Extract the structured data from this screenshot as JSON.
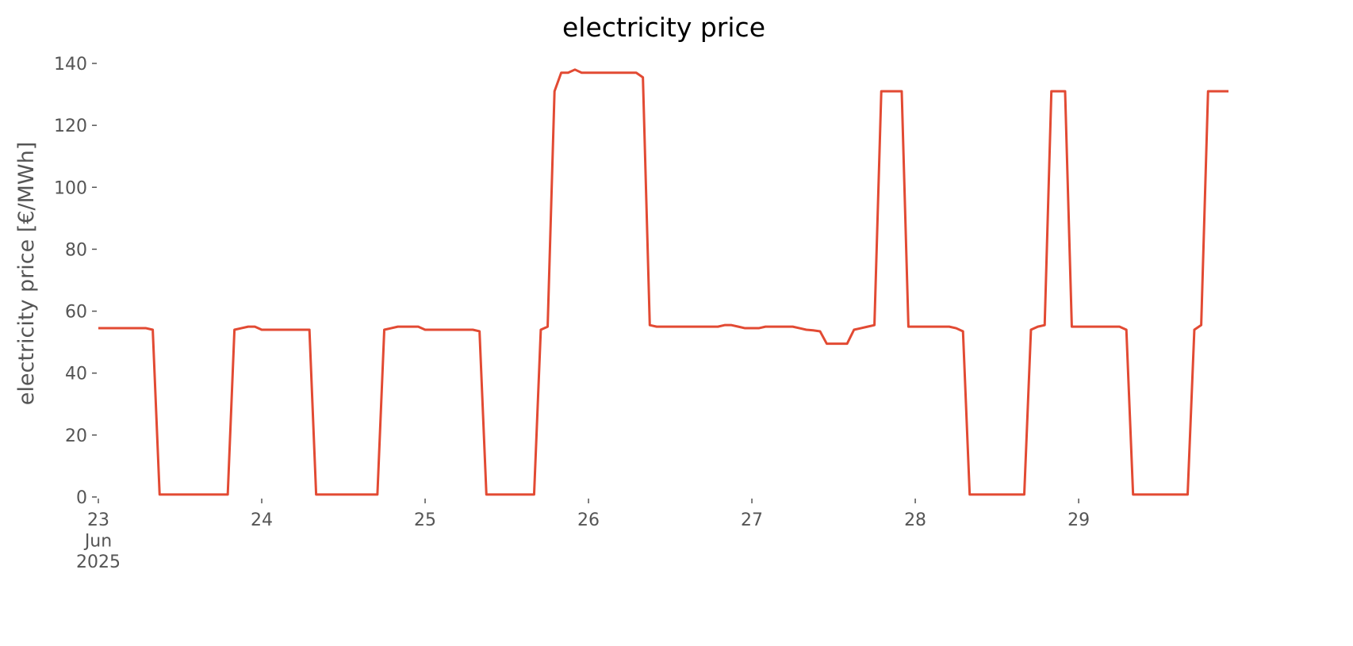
{
  "chart_data": {
    "type": "line",
    "title": "electricity price",
    "y_label": "electricity price [€/MWh]",
    "x": [
      23,
      23.042,
      23.083,
      23.125,
      23.167,
      23.208,
      23.25,
      23.292,
      23.333,
      23.375,
      23.417,
      23.458,
      23.5,
      23.542,
      23.583,
      23.625,
      23.667,
      23.708,
      23.75,
      23.792,
      23.833,
      23.875,
      23.917,
      23.958,
      24,
      24.042,
      24.083,
      24.125,
      24.167,
      24.208,
      24.25,
      24.292,
      24.333,
      24.375,
      24.417,
      24.458,
      24.5,
      24.542,
      24.583,
      24.625,
      24.667,
      24.708,
      24.75,
      24.792,
      24.833,
      24.875,
      24.917,
      24.958,
      25,
      25.042,
      25.083,
      25.125,
      25.167,
      25.208,
      25.25,
      25.292,
      25.333,
      25.375,
      25.417,
      25.458,
      25.5,
      25.542,
      25.583,
      25.625,
      25.667,
      25.708,
      25.75,
      25.792,
      25.833,
      25.875,
      25.917,
      25.958,
      26,
      26.042,
      26.083,
      26.125,
      26.167,
      26.208,
      26.25,
      26.292,
      26.333,
      26.375,
      26.417,
      26.458,
      26.5,
      26.542,
      26.583,
      26.625,
      26.667,
      26.708,
      26.75,
      26.792,
      26.833,
      26.875,
      26.917,
      26.958,
      27,
      27.042,
      27.083,
      27.125,
      27.167,
      27.208,
      27.25,
      27.292,
      27.333,
      27.375,
      27.417,
      27.458,
      27.5,
      27.542,
      27.583,
      27.625,
      27.667,
      27.708,
      27.75,
      27.792,
      27.833,
      27.875,
      27.917,
      27.958,
      28,
      28.042,
      28.083,
      28.125,
      28.167,
      28.208,
      28.25,
      28.292,
      28.333,
      28.375,
      28.417,
      28.458,
      28.5,
      28.542,
      28.583,
      28.625,
      28.667,
      28.708,
      28.75,
      28.792,
      28.833,
      28.875,
      28.917,
      28.958,
      29,
      29.042,
      29.083,
      29.125,
      29.167,
      29.208,
      29.25,
      29.292,
      29.333,
      29.375,
      29.417,
      29.458,
      29.5,
      29.542,
      29.583,
      29.625,
      29.667,
      29.708,
      29.75,
      29.792,
      29.833,
      29.875,
      29.917
    ],
    "series": [
      {
        "name": "electricity price",
        "color": "#e24a33",
        "values": [
          54.5,
          54.5,
          54.5,
          54.5,
          54.5,
          54.5,
          54.5,
          54.5,
          54,
          0.8,
          0.8,
          0.8,
          0.8,
          0.8,
          0.8,
          0.8,
          0.8,
          0.8,
          0.8,
          0.8,
          54,
          54.5,
          55,
          55,
          54,
          54,
          54,
          54,
          54,
          54,
          54,
          54,
          0.8,
          0.8,
          0.8,
          0.8,
          0.8,
          0.8,
          0.8,
          0.8,
          0.8,
          0.8,
          54,
          54.5,
          55,
          55,
          55,
          55,
          54,
          54,
          54,
          54,
          54,
          54,
          54,
          54,
          53.5,
          0.8,
          0.8,
          0.8,
          0.8,
          0.8,
          0.8,
          0.8,
          0.8,
          54,
          55,
          131,
          137,
          137,
          138,
          137,
          137,
          137,
          137,
          137,
          137,
          137,
          137,
          137,
          135.5,
          55.5,
          55,
          55,
          55,
          55,
          55,
          55,
          55,
          55,
          55,
          55,
          55.5,
          55.5,
          55,
          54.5,
          54.5,
          54.5,
          55,
          55,
          55,
          55,
          55,
          54.5,
          54,
          53.8,
          53.5,
          49.5,
          49.5,
          49.5,
          49.5,
          54,
          54.5,
          55,
          55.5,
          131,
          131,
          131,
          131,
          55,
          55,
          55,
          55,
          55,
          55,
          55,
          54.5,
          53.5,
          0.8,
          0.8,
          0.8,
          0.8,
          0.8,
          0.8,
          0.8,
          0.8,
          0.8,
          54,
          55,
          55.5,
          131,
          131,
          131,
          55,
          55,
          55,
          55,
          55,
          55,
          55,
          55,
          54,
          0.8,
          0.8,
          0.8,
          0.8,
          0.8,
          0.8,
          0.8,
          0.8,
          0.8,
          54,
          55.5,
          131,
          131,
          131,
          131
        ]
      }
    ],
    "xlim": [
      23,
      29.917
    ],
    "xticks": [
      {
        "value": 23,
        "label": "23\nJun\n2025"
      },
      24,
      25,
      26,
      27,
      28,
      29
    ],
    "ylim": [
      0,
      140
    ],
    "yticks": [
      0,
      20,
      40,
      60,
      80,
      100,
      120,
      140
    ],
    "grid": false
  }
}
